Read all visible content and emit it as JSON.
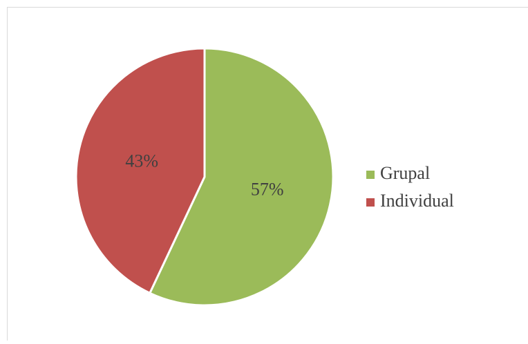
{
  "chart_data": {
    "type": "pie",
    "categories": [
      "Grupal",
      "Individual"
    ],
    "values": [
      57,
      43
    ],
    "value_labels": [
      "57%",
      "43%"
    ],
    "colors": [
      "#9bbb59",
      "#c0504d"
    ],
    "legend": "right"
  }
}
